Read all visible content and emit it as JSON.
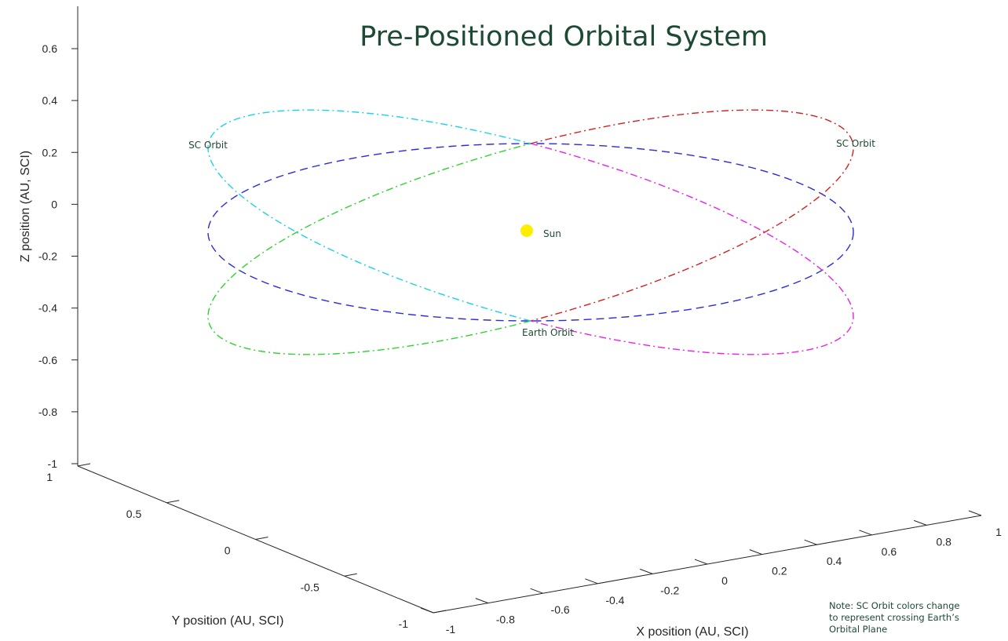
{
  "chart_data": {
    "type": "line",
    "title": "Pre-Positioned Orbital System",
    "projection": "3d",
    "xlabel": "X position (AU, SCI)",
    "ylabel": "Y position (AU, SCI)",
    "zlabel": "Z position (AU, SCI)",
    "xlim": [
      -1,
      1
    ],
    "ylim": [
      -1,
      1
    ],
    "zlim": [
      -1,
      0.6
    ],
    "x_ticks": [
      "-1",
      "-0.8",
      "-0.6",
      "-0.4",
      "-0.2",
      "0",
      "0.2",
      "0.4",
      "0.6",
      "0.8",
      "1"
    ],
    "y_ticks": [
      "-1",
      "-0.5",
      "0",
      "0.5",
      "1"
    ],
    "z_ticks": [
      "-1",
      "-0.8",
      "-0.6",
      "-0.4",
      "-0.2",
      "0",
      "0.2",
      "0.4",
      "0.6"
    ],
    "grid": false,
    "series": [
      {
        "name": "Earth Orbit",
        "shape": "circle",
        "radius_au": 1,
        "inclination_deg": 0,
        "center": [
          0,
          0,
          -0.1
        ],
        "color": "#2b2bd6",
        "style": "dashed"
      },
      {
        "name": "SC Orbit",
        "shape": "circle",
        "radius_au": 1,
        "tilt": 0.29,
        "segments": [
          {
            "side": "above Earth's orbital plane",
            "color": "#d22020"
          },
          {
            "side": "below Earth's orbital plane",
            "color": "#2fd22f"
          }
        ],
        "style": "dash-dot"
      },
      {
        "name": "SC Orbit",
        "shape": "circle",
        "radius_au": 1,
        "tilt": -0.29,
        "segments": [
          {
            "side": "above Earth's orbital plane",
            "color": "#ea1fea"
          },
          {
            "side": "below Earth's orbital plane",
            "color": "#19d2e8"
          }
        ],
        "style": "dash-dot"
      }
    ],
    "points": [
      {
        "name": "Sun",
        "x": 0,
        "y": 0,
        "z": -0.1,
        "color": "#ffee00"
      }
    ],
    "annotations": {
      "sc_orbit_left": "SC Orbit",
      "sc_orbit_right": "SC Orbit",
      "earth_orbit": "Earth Orbit",
      "sun": "Sun",
      "note_lines": [
        "Note: SC Orbit colors change",
        "to represent crossing Earth’s",
        "Orbital Plane"
      ]
    }
  }
}
